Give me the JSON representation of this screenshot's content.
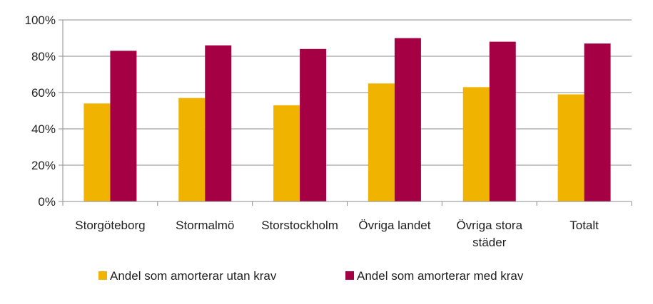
{
  "chart_data": {
    "type": "bar",
    "categories": [
      [
        "Storgöteborg"
      ],
      [
        "Stormalmö"
      ],
      [
        "Storstockholm"
      ],
      [
        "Övriga landet"
      ],
      [
        "Övriga stora",
        "städer"
      ],
      [
        "Totalt"
      ]
    ],
    "series": [
      {
        "name": "Andel som amorterar utan krav",
        "color": "#F0B400",
        "values": [
          54,
          57,
          53,
          65,
          63,
          59
        ]
      },
      {
        "name": "Andel som amorterar med krav",
        "color": "#A50044",
        "values": [
          83,
          86,
          84,
          90,
          88,
          87
        ]
      }
    ],
    "yticks": [
      "0%",
      "20%",
      "40%",
      "60%",
      "80%",
      "100%"
    ],
    "ylim": [
      0,
      100
    ],
    "grid": true,
    "legend_position": "bottom"
  }
}
